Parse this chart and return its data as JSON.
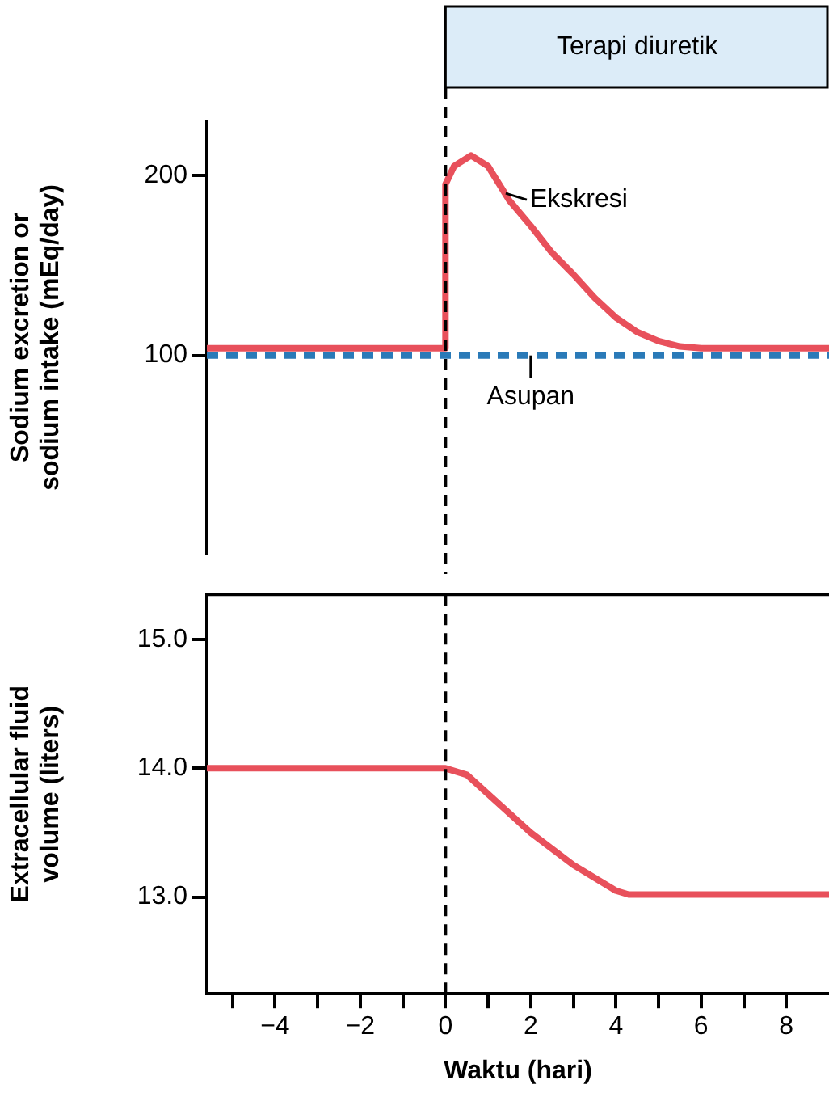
{
  "chart_data": [
    {
      "type": "line",
      "ylabel": "Sodium excretion or sodium intake (mEq/day)",
      "xlim": [
        -5.6,
        9
      ],
      "ylim": [
        -10,
        230
      ],
      "yticks": [
        100,
        200
      ],
      "tick_labels": "y",
      "grid": false,
      "legend": false,
      "marker": "none",
      "series": [
        {
          "color": "#e8505b",
          "x": [
            -5.6,
            0,
            0,
            0.2,
            0.6,
            1,
            1.5,
            2,
            2.5,
            3,
            3.5,
            4,
            4.5,
            5,
            5.5,
            6,
            9
          ],
          "values": [
            104,
            104,
            195,
            205,
            211,
            205,
            186,
            172,
            157,
            145,
            132,
            121,
            113,
            108,
            105,
            104,
            104
          ],
          "line_style": "solid"
        },
        {
          "color": "#2a7ab8",
          "x": [
            -5.6,
            9
          ],
          "values": [
            100,
            100
          ],
          "line_style": "dashed"
        }
      ],
      "ref_lines": [
        {
          "axis": "x",
          "value": 0,
          "color": "#000000",
          "line_style": "dashed"
        }
      ],
      "annotations": [
        "Terapi diuretik",
        {
          "text": "Ekskresi",
          "x": 1.3,
          "y": 190
        },
        {
          "text": "Asupan",
          "x": 2,
          "y": 100
        }
      ]
    },
    {
      "type": "line",
      "xlabel": "Waktu (hari)",
      "ylabel": "Extracellular fluid volume (liters)",
      "xlim": [
        -5.6,
        9
      ],
      "ylim": [
        12.25,
        15.35
      ],
      "xticks": [
        {
          "value": -5,
          "label": null
        },
        {
          "value": -4,
          "label": "−4"
        },
        {
          "value": -3,
          "label": null
        },
        {
          "value": -2,
          "label": "−2"
        },
        {
          "value": -1,
          "label": null
        },
        0,
        {
          "value": 1,
          "label": null
        },
        2,
        {
          "value": 3,
          "label": null
        },
        4,
        {
          "value": 5,
          "label": null
        },
        6,
        {
          "value": 7,
          "label": null
        },
        8
      ],
      "yticks": [
        {
          "value": 13,
          "label": "13.0"
        },
        {
          "value": 14,
          "label": "14.0"
        },
        {
          "value": 15,
          "label": "15.0"
        }
      ],
      "grid": false,
      "legend": false,
      "marker": "none",
      "series": [
        {
          "color": "#e8505b",
          "x": [
            -5.6,
            0,
            0.5,
            1,
            2,
            3,
            4,
            4.3,
            9
          ],
          "values": [
            14,
            14,
            13.95,
            13.8,
            13.5,
            13.25,
            13.05,
            13.02,
            13.02
          ],
          "line_style": "solid"
        }
      ],
      "ref_lines": [
        {
          "axis": "x",
          "value": 0,
          "color": "#000000",
          "line_style": "dashed"
        }
      ]
    }
  ]
}
